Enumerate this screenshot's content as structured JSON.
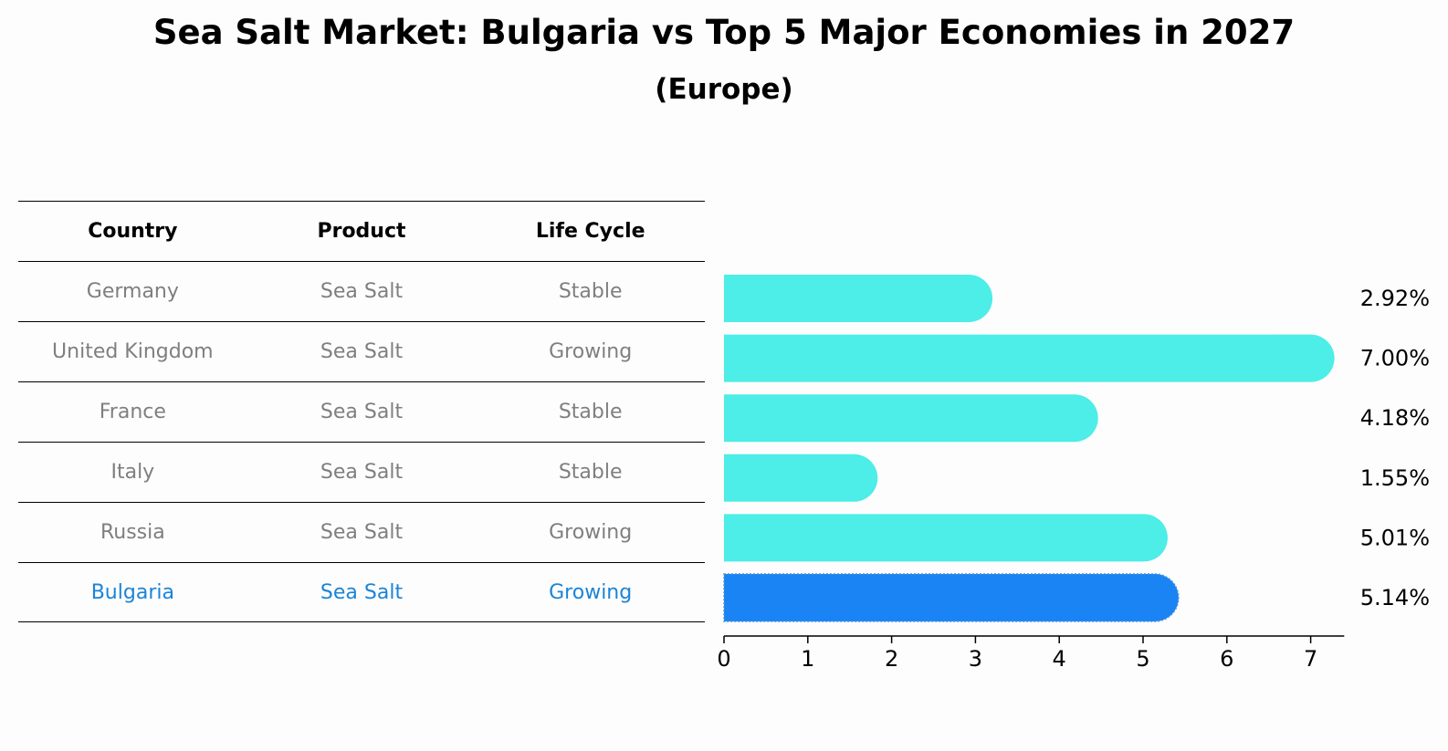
{
  "title": "Sea Salt Market: Bulgaria vs Top 5 Major Economies in 2027",
  "subtitle": "(Europe)",
  "table": {
    "headers": [
      "Country",
      "Product",
      "Life Cycle"
    ],
    "rows": [
      {
        "country": "Germany",
        "product": "Sea Salt",
        "life_cycle": "Stable"
      },
      {
        "country": "United Kingdom",
        "product": "Sea Salt",
        "life_cycle": "Growing"
      },
      {
        "country": "France",
        "product": "Sea Salt",
        "life_cycle": "Stable"
      },
      {
        "country": "Italy",
        "product": "Sea Salt",
        "life_cycle": "Stable"
      },
      {
        "country": "Russia",
        "product": "Sea Salt",
        "life_cycle": "Growing"
      },
      {
        "country": "Bulgaria",
        "product": "Sea Salt",
        "life_cycle": "Growing"
      }
    ]
  },
  "colors": {
    "bar": "#4dede8",
    "highlight_bar": "#1a84f5",
    "highlight_text": "#1a84d8",
    "muted_text": "#7f7f7f"
  },
  "chart_data": {
    "type": "bar",
    "orientation": "horizontal",
    "title": "Sea Salt Market: Bulgaria vs Top 5 Major Economies in 2027",
    "subtitle": "(Europe)",
    "categories": [
      "Germany",
      "United Kingdom",
      "France",
      "Italy",
      "Russia",
      "Bulgaria"
    ],
    "values": [
      2.92,
      7.0,
      4.18,
      1.55,
      5.01,
      5.14
    ],
    "value_labels": [
      "2.92%",
      "7.00%",
      "4.18%",
      "1.55%",
      "5.01%",
      "5.14%"
    ],
    "highlight": "Bulgaria",
    "xlim": [
      0,
      7.4
    ],
    "xticks": [
      0,
      1,
      2,
      3,
      4,
      5,
      6,
      7
    ],
    "xlabel": "",
    "ylabel": ""
  }
}
